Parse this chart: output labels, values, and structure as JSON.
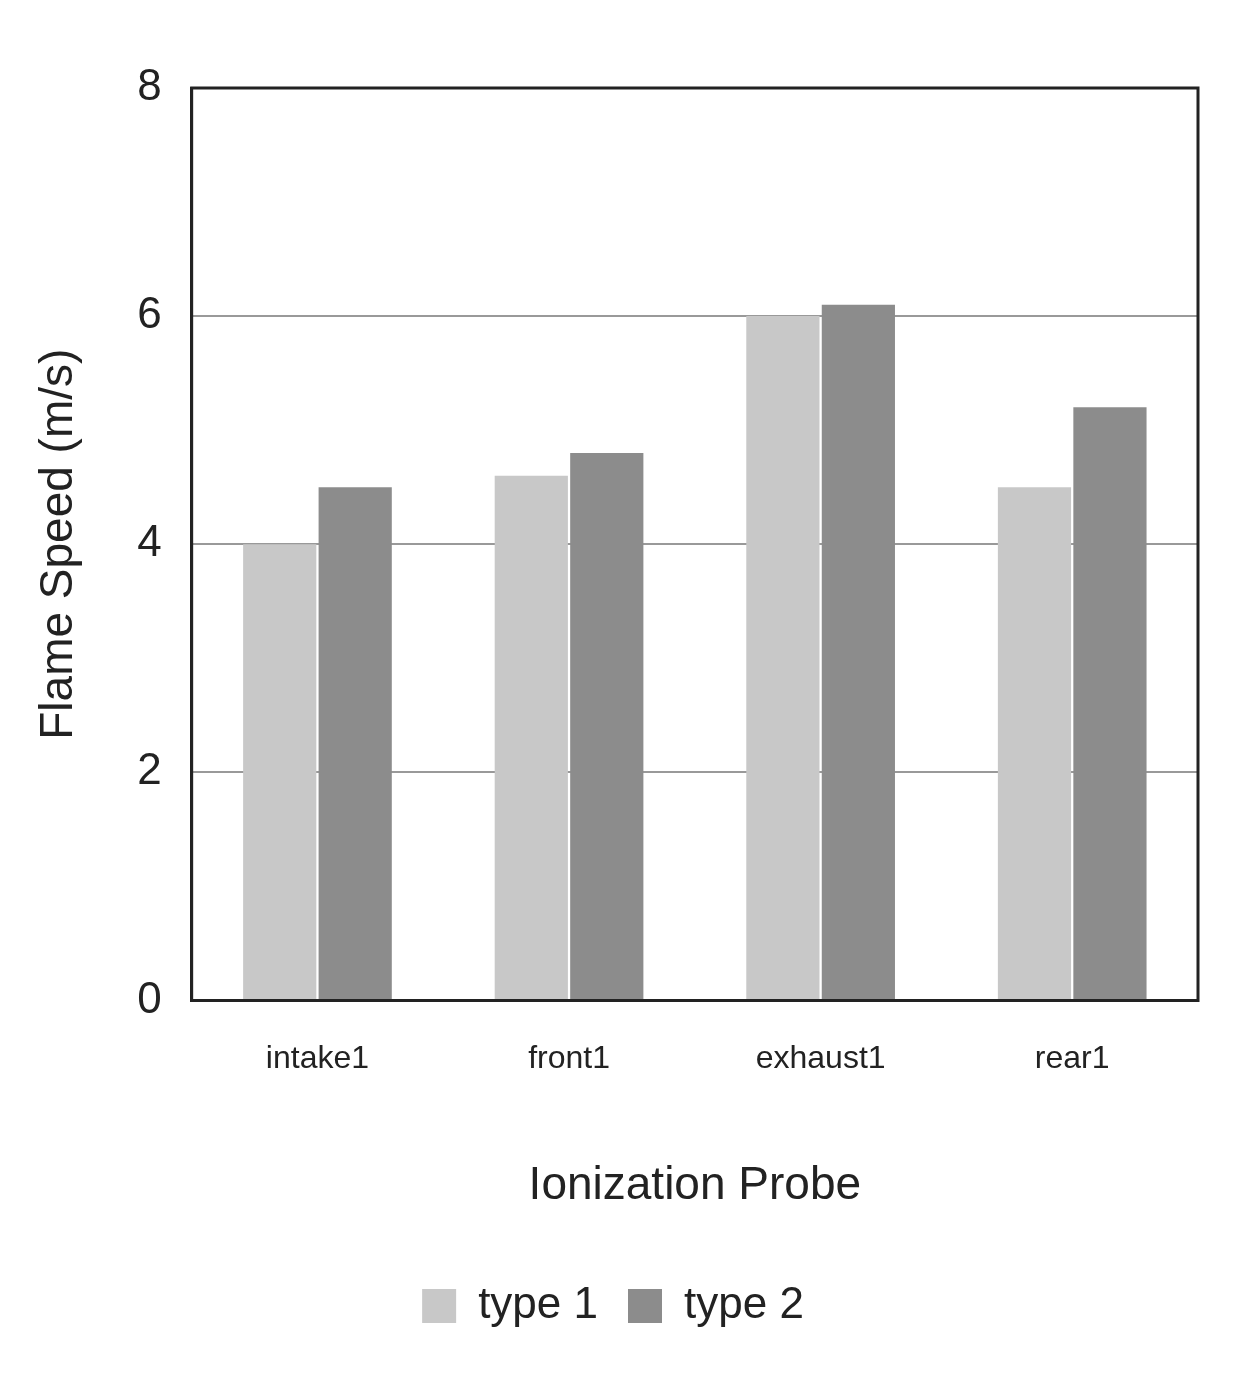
{
  "chart_data": {
    "type": "bar",
    "xlabel": "Ionization Probe",
    "ylabel": "Flame Speed (m/s)",
    "categories": [
      "intake1",
      "front1",
      "exhaust1",
      "rear1"
    ],
    "series": [
      {
        "name": "type 1",
        "color": "#c8c8c8",
        "values": [
          4.0,
          4.6,
          6.0,
          4.5
        ]
      },
      {
        "name": "type 2",
        "color": "#8c8c8c",
        "values": [
          4.5,
          4.8,
          6.1,
          5.2
        ]
      }
    ],
    "ylim": [
      0,
      8
    ],
    "yticks": [
      0,
      2,
      4,
      6,
      8
    ],
    "grid": "y",
    "legend": "bottom"
  }
}
